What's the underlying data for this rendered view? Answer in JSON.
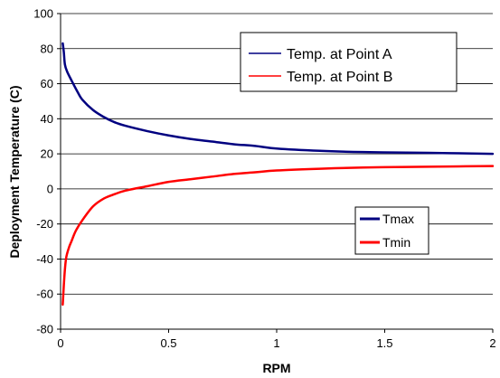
{
  "chart_data": {
    "type": "line",
    "title": "",
    "xlabel": "RPM",
    "ylabel": "Deployment Temperature (C)",
    "xlim": [
      0,
      2
    ],
    "ylim": [
      -80,
      100
    ],
    "x_ticks": [
      0,
      0.5,
      1,
      1.5,
      2
    ],
    "x_tick_labels": [
      "0",
      "0.5",
      "1",
      "1.5",
      "2"
    ],
    "y_ticks": [
      -80,
      -60,
      -40,
      -20,
      0,
      20,
      40,
      60,
      80,
      100
    ],
    "y_tick_labels": [
      "-80",
      "-60",
      "-40",
      "-20",
      "0",
      "20",
      "40",
      "60",
      "80",
      "100"
    ],
    "grid": "horizontal",
    "series": [
      {
        "name": "Tmax",
        "color": "#000080",
        "x": [
          0.01,
          0.015,
          0.02,
          0.03,
          0.05,
          0.08,
          0.1,
          0.15,
          0.2,
          0.25,
          0.3,
          0.4,
          0.5,
          0.6,
          0.7,
          0.8,
          0.9,
          1.0,
          1.2,
          1.4,
          1.6,
          1.8,
          2.0
        ],
        "values": [
          83,
          78,
          71,
          67,
          62,
          55,
          51,
          45,
          41,
          38,
          36,
          33,
          30.5,
          28.5,
          27,
          25.5,
          24.5,
          23,
          21.7,
          21,
          20.7,
          20.4,
          20
        ]
      },
      {
        "name": "Tmin",
        "color": "#ff0000",
        "x": [
          0.01,
          0.015,
          0.02,
          0.025,
          0.03,
          0.04,
          0.05,
          0.07,
          0.1,
          0.15,
          0.2,
          0.25,
          0.3,
          0.4,
          0.5,
          0.6,
          0.7,
          0.8,
          0.9,
          1.0,
          1.2,
          1.4,
          1.6,
          1.8,
          2.0
        ],
        "values": [
          -66,
          -55,
          -46,
          -40,
          -37,
          -33,
          -30,
          -24,
          -18,
          -10,
          -5.5,
          -3,
          -1,
          1.5,
          4,
          5.5,
          7,
          8.5,
          9.5,
          10.5,
          11.5,
          12.2,
          12.5,
          12.8,
          13
        ]
      }
    ],
    "legends": [
      {
        "placement": "top-right",
        "entries": [
          {
            "label": "Temp. at Point A",
            "color": "#000080"
          },
          {
            "label": "Temp. at Point B",
            "color": "#ff0000"
          }
        ]
      },
      {
        "placement": "center-right",
        "entries": [
          {
            "label": "Tmax",
            "color": "#000080"
          },
          {
            "label": "Tmin",
            "color": "#ff0000"
          }
        ]
      }
    ]
  }
}
